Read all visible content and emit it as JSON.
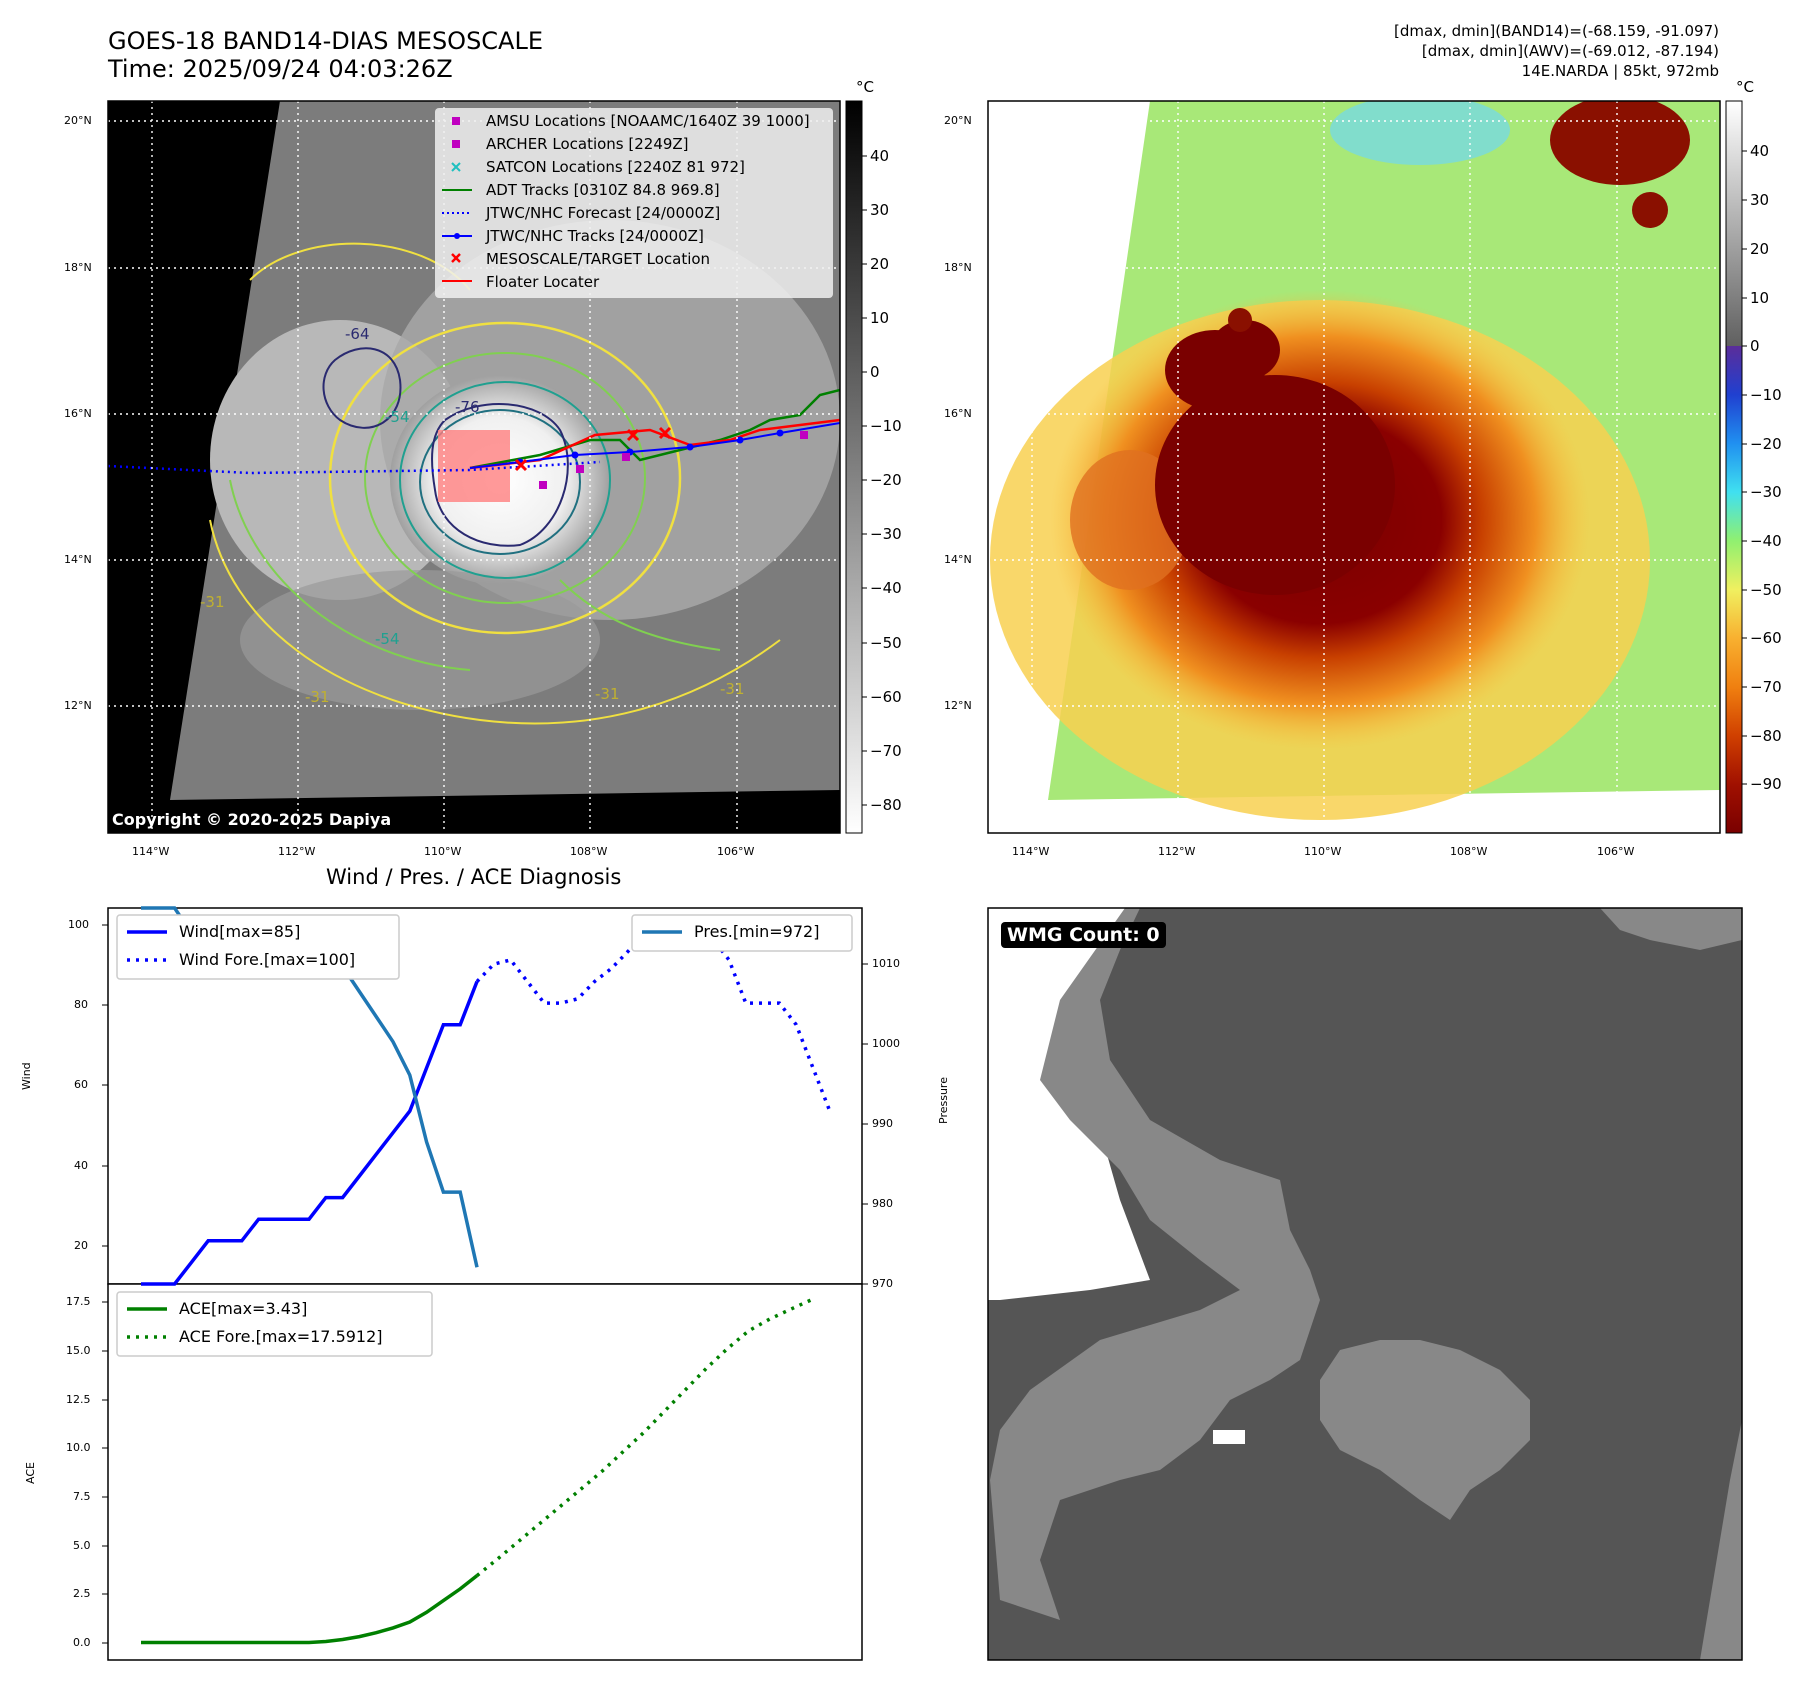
{
  "header": {
    "title_line1": "GOES-18 BAND14-DIAS MESOSCALE",
    "title_line2": "Time: 2025/09/24 04:03:26Z",
    "info_line1": "[dmax, dmin](BAND14)=(-68.159, -91.097)",
    "info_line2": "[dmax, dmin](AWV)=(-69.012, -87.194)",
    "info_line3": "14E.NARDA | 85kt, 972mb"
  },
  "maps": {
    "lat_labels": [
      "20°N",
      "18°N",
      "16°N",
      "14°N",
      "12°N"
    ],
    "lon_labels": [
      "114°W",
      "112°W",
      "110°W",
      "108°W",
      "106°W"
    ],
    "copyright": "Copyright © 2020-2025 Dapiya",
    "unit": "°C",
    "left_colorbar_ticks": [
      "40",
      "30",
      "20",
      "10",
      "0",
      "−10",
      "−20",
      "−30",
      "−40",
      "−50",
      "−60",
      "−70",
      "−80"
    ],
    "right_colorbar_ticks": [
      "40",
      "30",
      "20",
      "10",
      "0",
      "−10",
      "−20",
      "−30",
      "−40",
      "−50",
      "−60",
      "−70",
      "−80",
      "−90"
    ],
    "contour_labels": [
      "-76",
      "-54",
      "-31",
      "-64",
      "-54",
      "-31",
      "-31",
      "-31"
    ],
    "legend": [
      {
        "label": "AMSU Locations [NOAAMC/1640Z 39 1000]",
        "symbol": "square",
        "color": "#c000c0"
      },
      {
        "label": "ARCHER Locations [2249Z]",
        "symbol": "square",
        "color": "#c000c0"
      },
      {
        "label": "SATCON Locations [2240Z 81 972]",
        "symbol": "x",
        "color": "#20c0c0"
      },
      {
        "label": "ADT Tracks [0310Z 84.8 969.8]",
        "symbol": "line",
        "color": "#008000"
      },
      {
        "label": "JTWC/NHC Forecast [24/0000Z]",
        "symbol": "dotted",
        "color": "#0000ff"
      },
      {
        "label": "JTWC/NHC Tracks [24/0000Z]",
        "symbol": "line-dot",
        "color": "#0000ff"
      },
      {
        "label": "MESOSCALE/TARGET Location",
        "symbol": "x",
        "color": "#ff0000"
      },
      {
        "label": "Floater Locater",
        "symbol": "line",
        "color": "#ff0000"
      }
    ]
  },
  "diagnosis": {
    "title": "Wind / Pres. / ACE Diagnosis",
    "wind_ylabel": "Wind",
    "pressure_ylabel": "Pressure",
    "ace_ylabel": "ACE",
    "wind_ticks": [
      "100",
      "80",
      "60",
      "40",
      "20"
    ],
    "pressure_ticks": [
      "1010",
      "1000",
      "990",
      "980",
      "970"
    ],
    "ace_ticks": [
      "17.5",
      "15.0",
      "12.5",
      "10.0",
      "7.5",
      "5.0",
      "2.5",
      "0.0"
    ],
    "legend_wind": "Wind[max=85]",
    "legend_wind_fore": "Wind Fore.[max=100]",
    "legend_pres": "Pres.[min=972]",
    "legend_ace": "ACE[max=3.43]",
    "legend_ace_fore": "ACE Fore.[max=17.5912]"
  },
  "wmg": {
    "label": "WMG Count: 0"
  },
  "chart_data": [
    {
      "type": "line",
      "title": "Wind / Pres. / ACE Diagnosis",
      "ylabel": "Wind",
      "ylim": [
        15,
        102
      ],
      "series": [
        {
          "name": "Wind[max=85]",
          "values": [
            15,
            15,
            15,
            20,
            25,
            25,
            25,
            30,
            30,
            30,
            30,
            35,
            35,
            40,
            45,
            50,
            55,
            65,
            75,
            75,
            85
          ]
        },
        {
          "name": "Wind Fore.[max=100]",
          "values": [
            85,
            89,
            90,
            85,
            80,
            80,
            81,
            85,
            88,
            92,
            96,
            100,
            95,
            95,
            95,
            90,
            80,
            80,
            80,
            75,
            65,
            55
          ]
        }
      ]
    },
    {
      "type": "line",
      "ylabel": "Pressure",
      "ylim": [
        970,
        1015
      ],
      "series": [
        {
          "name": "Pres.[min=972]",
          "values": [
            1015,
            1015,
            1015,
            1012,
            1010,
            1010,
            1010,
            1010,
            1010,
            1010,
            1010,
            1008,
            1008,
            1005,
            1002,
            999,
            995,
            987,
            981,
            981,
            972
          ]
        }
      ]
    },
    {
      "type": "line",
      "ylabel": "ACE",
      "ylim": [
        -0.9,
        18.4
      ],
      "series": [
        {
          "name": "ACE[max=3.43]",
          "values": [
            0,
            0,
            0,
            0,
            0,
            0,
            0,
            0,
            0,
            0,
            0,
            0.05,
            0.15,
            0.3,
            0.5,
            0.75,
            1.05,
            1.55,
            2.15,
            2.75,
            3.43
          ]
        },
        {
          "name": "ACE Fore.[max=17.5912]",
          "values": [
            3.43,
            4.3,
            5.2,
            6.1,
            7.0,
            7.9,
            8.8,
            9.8,
            10.8,
            11.9,
            13.0,
            14.1,
            15.1,
            16.0,
            16.6,
            17.1,
            17.59
          ]
        }
      ]
    }
  ]
}
